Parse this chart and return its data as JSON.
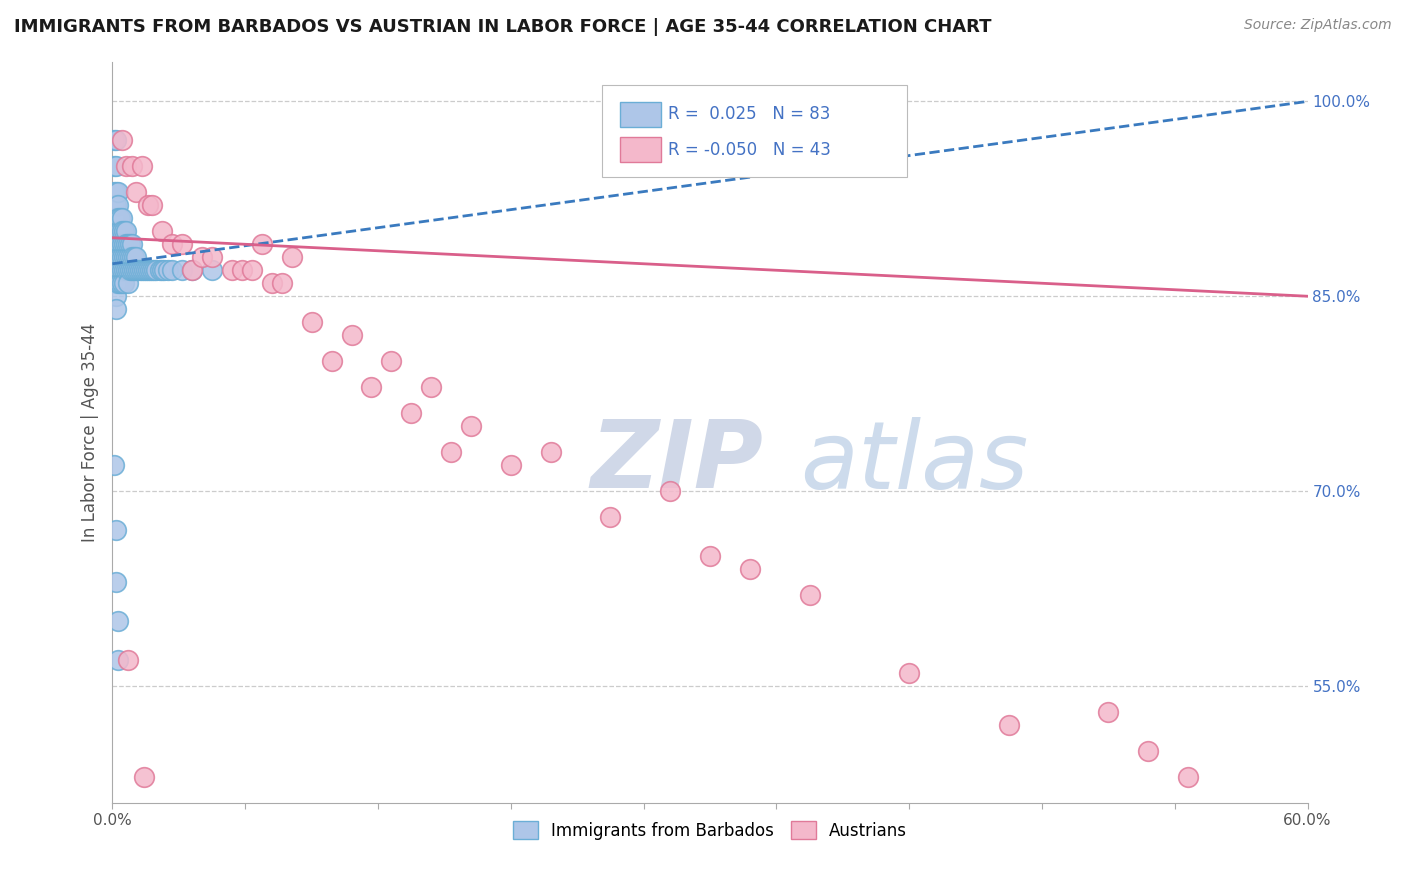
{
  "title": "IMMIGRANTS FROM BARBADOS VS AUSTRIAN IN LABOR FORCE | AGE 35-44 CORRELATION CHART",
  "source": "Source: ZipAtlas.com",
  "ylabel": "In Labor Force | Age 35-44",
  "xlim": [
    0.0,
    0.6
  ],
  "ylim": [
    0.46,
    1.03
  ],
  "barbados_R": 0.025,
  "barbados_N": 83,
  "austrian_R": -0.05,
  "austrian_N": 43,
  "barbados_color": "#aec6e8",
  "barbados_edge_color": "#6baed6",
  "austrian_color": "#f4b8cb",
  "austrian_edge_color": "#e07a99",
  "barbados_trend_color": "#3a7abf",
  "austrian_trend_color": "#d95f8a",
  "legend_label_barbados": "Immigrants from Barbados",
  "legend_label_austrians": "Austrians",
  "barbados_trend_x": [
    0.0,
    0.6
  ],
  "barbados_trend_y": [
    0.875,
    1.0
  ],
  "austrian_trend_x": [
    0.0,
    0.6
  ],
  "austrian_trend_y": [
    0.895,
    0.85
  ],
  "yticks_right": [
    1.0,
    0.85,
    0.7,
    0.55
  ],
  "yticks_right_labels": [
    "100.0%",
    "85.0%",
    "70.0%",
    "55.0%"
  ],
  "seed": 1234,
  "barbados_x_main": [
    0.001,
    0.001,
    0.001,
    0.001,
    0.001,
    0.002,
    0.002,
    0.002,
    0.002,
    0.002,
    0.002,
    0.002,
    0.002,
    0.002,
    0.002,
    0.002,
    0.002,
    0.003,
    0.003,
    0.003,
    0.003,
    0.003,
    0.003,
    0.003,
    0.003,
    0.004,
    0.004,
    0.004,
    0.004,
    0.004,
    0.004,
    0.005,
    0.005,
    0.005,
    0.005,
    0.005,
    0.005,
    0.006,
    0.006,
    0.006,
    0.006,
    0.006,
    0.007,
    0.007,
    0.007,
    0.007,
    0.008,
    0.008,
    0.008,
    0.008,
    0.009,
    0.009,
    0.009,
    0.01,
    0.01,
    0.01,
    0.011,
    0.011,
    0.012,
    0.012,
    0.013,
    0.014,
    0.015,
    0.016,
    0.017,
    0.018,
    0.019,
    0.02,
    0.021,
    0.022,
    0.024,
    0.025,
    0.026,
    0.028,
    0.03,
    0.035,
    0.04,
    0.05,
    0.001,
    0.002,
    0.002,
    0.003,
    0.003
  ],
  "barbados_y_main": [
    0.97,
    0.95,
    0.93,
    0.92,
    0.91,
    0.97,
    0.95,
    0.93,
    0.92,
    0.91,
    0.9,
    0.89,
    0.88,
    0.87,
    0.86,
    0.85,
    0.84,
    0.93,
    0.92,
    0.91,
    0.9,
    0.89,
    0.88,
    0.87,
    0.86,
    0.91,
    0.9,
    0.89,
    0.88,
    0.87,
    0.86,
    0.91,
    0.9,
    0.89,
    0.88,
    0.87,
    0.86,
    0.9,
    0.89,
    0.88,
    0.87,
    0.86,
    0.9,
    0.89,
    0.88,
    0.87,
    0.89,
    0.88,
    0.87,
    0.86,
    0.89,
    0.88,
    0.87,
    0.89,
    0.88,
    0.87,
    0.88,
    0.87,
    0.88,
    0.87,
    0.87,
    0.87,
    0.87,
    0.87,
    0.87,
    0.87,
    0.87,
    0.87,
    0.87,
    0.87,
    0.87,
    0.87,
    0.87,
    0.87,
    0.87,
    0.87,
    0.87,
    0.87,
    0.72,
    0.67,
    0.63,
    0.57,
    0.6
  ],
  "austrian_x_vals": [
    0.005,
    0.007,
    0.01,
    0.012,
    0.015,
    0.018,
    0.02,
    0.025,
    0.03,
    0.035,
    0.04,
    0.045,
    0.05,
    0.06,
    0.065,
    0.07,
    0.075,
    0.08,
    0.085,
    0.09,
    0.1,
    0.11,
    0.12,
    0.13,
    0.14,
    0.15,
    0.16,
    0.17,
    0.18,
    0.2,
    0.22,
    0.25,
    0.28,
    0.3,
    0.32,
    0.35,
    0.4,
    0.45,
    0.5,
    0.52,
    0.54,
    0.008,
    0.016
  ],
  "austrian_y_vals": [
    0.97,
    0.95,
    0.95,
    0.93,
    0.95,
    0.92,
    0.92,
    0.9,
    0.89,
    0.89,
    0.87,
    0.88,
    0.88,
    0.87,
    0.87,
    0.87,
    0.89,
    0.86,
    0.86,
    0.88,
    0.83,
    0.8,
    0.82,
    0.78,
    0.8,
    0.76,
    0.78,
    0.73,
    0.75,
    0.72,
    0.73,
    0.68,
    0.7,
    0.65,
    0.64,
    0.62,
    0.56,
    0.52,
    0.53,
    0.5,
    0.48,
    0.57,
    0.48
  ]
}
